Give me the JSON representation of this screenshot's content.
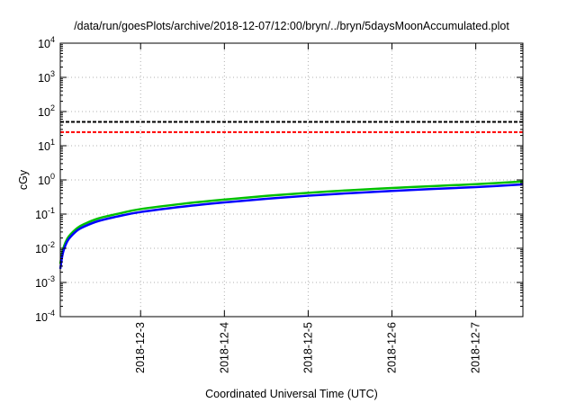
{
  "chart_data": {
    "type": "line",
    "title": "/data/run/goesPlots/archive/2018-12-07/12:00/bryn/../bryn/5daysMoonAccumulated.plot",
    "xlabel": "Coordinated Universal Time (UTC)",
    "ylabel": "cGy",
    "x_unit": "day",
    "xlim": [
      "2018-12-02T01:00",
      "2018-12-07T13:30"
    ],
    "x_ticks": [
      "2018-12-3",
      "2018-12-4",
      "2018-12-5",
      "2018-12-6",
      "2018-12-7"
    ],
    "y_scale": "log",
    "ylim": [
      0.0001,
      10000
    ],
    "y_ticks": [
      {
        "value": 0.0001,
        "base": "10",
        "exp": "-4"
      },
      {
        "value": 0.001,
        "base": "10",
        "exp": "-3"
      },
      {
        "value": 0.01,
        "base": "10",
        "exp": "-2"
      },
      {
        "value": 0.1,
        "base": "10",
        "exp": "-1"
      },
      {
        "value": 1,
        "base": "10",
        "exp": "0"
      },
      {
        "value": 10,
        "base": "10",
        "exp": "1"
      },
      {
        "value": 100,
        "base": "10",
        "exp": "2"
      },
      {
        "value": 1000,
        "base": "10",
        "exp": "3"
      },
      {
        "value": 10000,
        "base": "10",
        "exp": "4"
      }
    ],
    "grid": true,
    "reference_lines": [
      {
        "value": 50,
        "color": "#000000",
        "style": "dashed"
      },
      {
        "value": 25,
        "color": "#ff0000",
        "style": "dashed"
      }
    ],
    "series": [
      {
        "color": "#00c000",
        "x": [
          "2018-12-02T01:00",
          "2018-12-02T01:30",
          "2018-12-02T02:00",
          "2018-12-02T03:00",
          "2018-12-02T04:00",
          "2018-12-02T06:00",
          "2018-12-02T08:00",
          "2018-12-02T12:00",
          "2018-12-02T18:00",
          "2018-12-03T00:00",
          "2018-12-03T12:00",
          "2018-12-04T00:00",
          "2018-12-04T12:00",
          "2018-12-05T00:00",
          "2018-12-05T12:00",
          "2018-12-06T00:00",
          "2018-12-06T12:00",
          "2018-12-07T00:00",
          "2018-12-07T13:30"
        ],
        "values": [
          0.0035,
          0.007,
          0.011,
          0.019,
          0.026,
          0.04,
          0.052,
          0.075,
          0.105,
          0.14,
          0.2,
          0.265,
          0.34,
          0.42,
          0.5,
          0.58,
          0.66,
          0.75,
          0.9
        ]
      },
      {
        "color": "#0000ff",
        "x": [
          "2018-12-02T01:00",
          "2018-12-02T01:30",
          "2018-12-02T02:00",
          "2018-12-02T03:00",
          "2018-12-02T04:00",
          "2018-12-02T06:00",
          "2018-12-02T08:00",
          "2018-12-02T12:00",
          "2018-12-02T18:00",
          "2018-12-03T00:00",
          "2018-12-03T12:00",
          "2018-12-04T00:00",
          "2018-12-04T12:00",
          "2018-12-05T00:00",
          "2018-12-05T12:00",
          "2018-12-06T00:00",
          "2018-12-06T12:00",
          "2018-12-07T00:00",
          "2018-12-07T13:30"
        ],
        "values": [
          0.0025,
          0.0055,
          0.009,
          0.016,
          0.022,
          0.034,
          0.044,
          0.063,
          0.088,
          0.115,
          0.165,
          0.22,
          0.28,
          0.345,
          0.41,
          0.475,
          0.545,
          0.615,
          0.74
        ]
      }
    ]
  }
}
